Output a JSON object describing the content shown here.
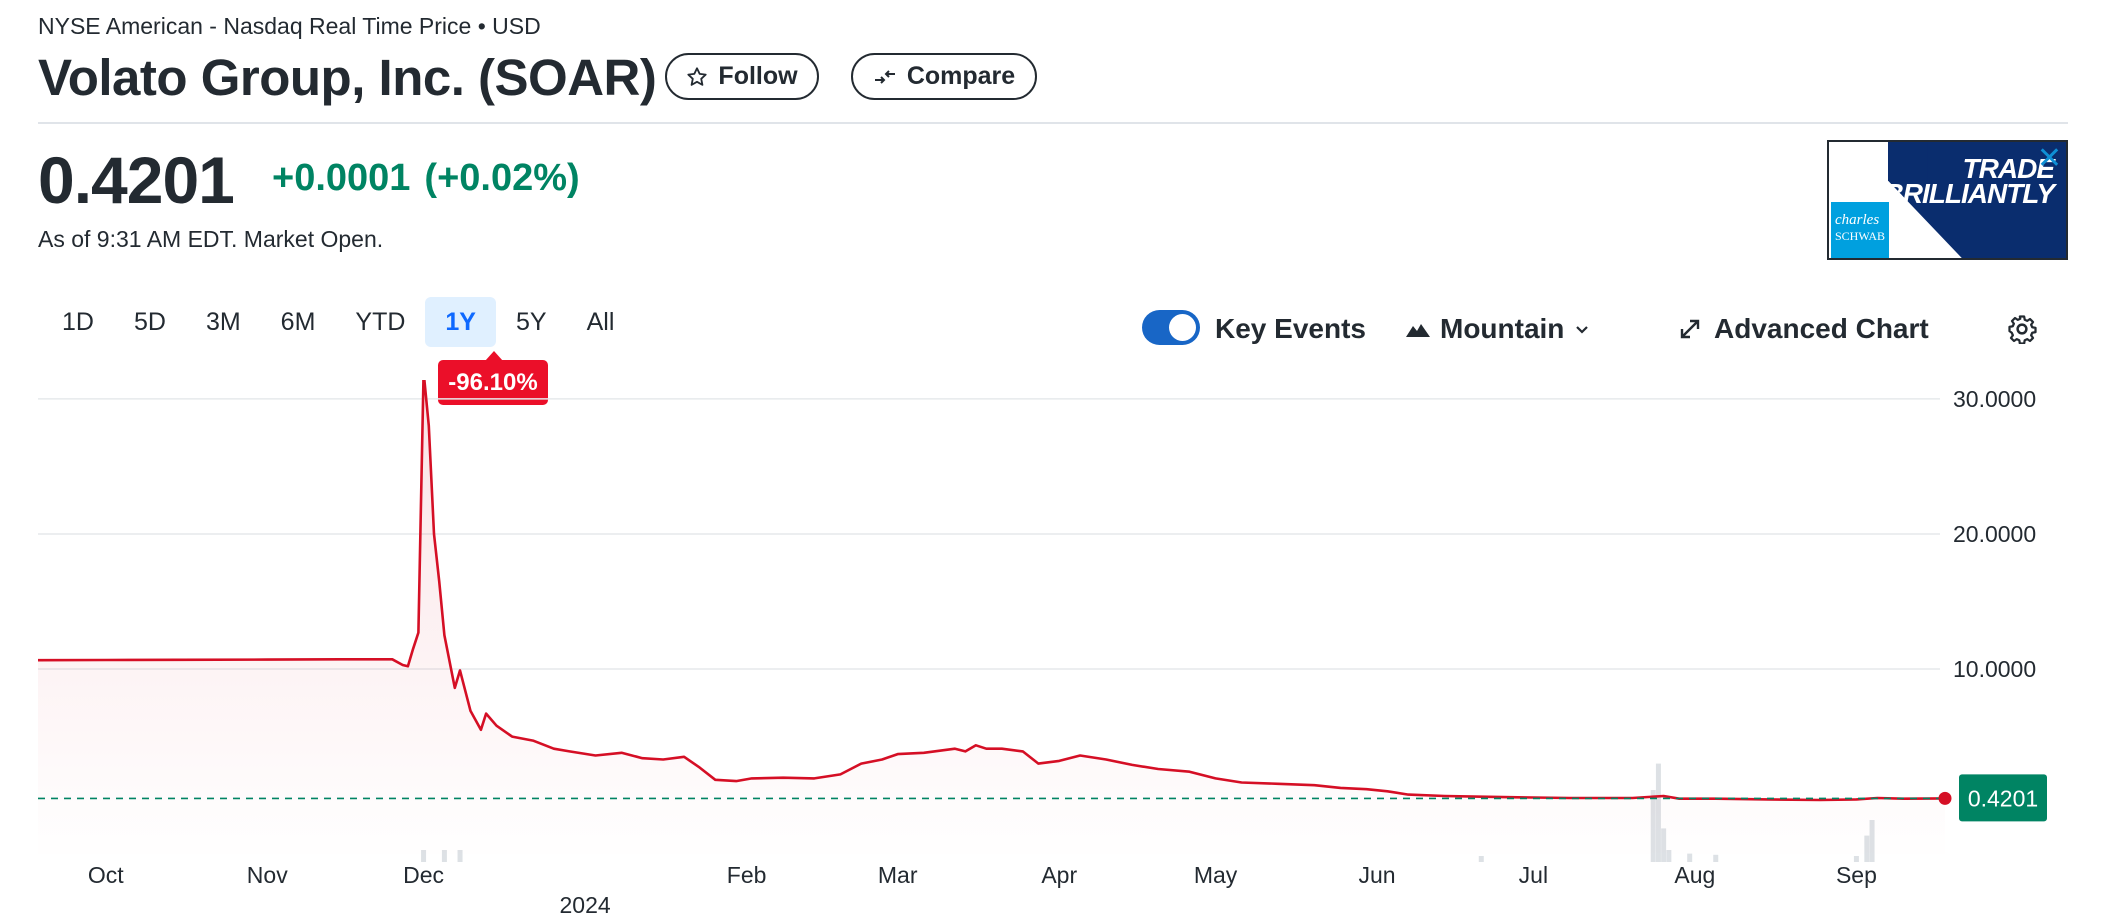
{
  "header": {
    "exchange": "NYSE American - Nasdaq Real Time Price • USD",
    "title": "Volato Group, Inc. (SOAR)",
    "follow_label": "Follow",
    "compare_label": "Compare"
  },
  "quote": {
    "price": "0.4201",
    "change": "+0.0001",
    "change_pct": "(+0.02%)",
    "as_of": "As of 9:31 AM EDT. Market Open."
  },
  "ad": {
    "line1": "TRADE",
    "line2": "BRILLIANTLY",
    "logo_line1": "charles",
    "logo_line2": "SCHWAB"
  },
  "ranges": [
    {
      "label": "1D",
      "active": false
    },
    {
      "label": "5D",
      "active": false
    },
    {
      "label": "3M",
      "active": false
    },
    {
      "label": "6M",
      "active": false
    },
    {
      "label": "YTD",
      "active": false
    },
    {
      "label": "1Y",
      "active": true
    },
    {
      "label": "5Y",
      "active": false
    },
    {
      "label": "All",
      "active": false
    }
  ],
  "performance_badge": "-96.10%",
  "controls": {
    "key_events_label": "Key Events",
    "key_events_on": true,
    "chart_type_label": "Mountain",
    "advanced_label": "Advanced Chart"
  },
  "colors": {
    "line": "#d50f25",
    "positive": "#008463",
    "badge": "#eb0f29",
    "active_range_bg": "#e0f0ff",
    "active_range_text": "#0f69ff"
  },
  "chart_data": {
    "type": "area",
    "ylim": [
      -3.4,
      31.4
    ],
    "yticks": [
      {
        "value": 30,
        "label": "30.0000"
      },
      {
        "value": 20,
        "label": "20.0000"
      },
      {
        "value": 10,
        "label": "10.0000"
      }
    ],
    "current_price": 0.4201,
    "current_label": "0.4201",
    "xlim": [
      "2023-09-18",
      "2024-09-18"
    ],
    "xticks": [
      {
        "date": "2023-10-01",
        "label": "Oct"
      },
      {
        "date": "2023-11-01",
        "label": "Nov"
      },
      {
        "date": "2023-12-01",
        "label": "Dec"
      },
      {
        "date": "2024-02-01",
        "label": "Feb"
      },
      {
        "date": "2024-03-01",
        "label": "Mar"
      },
      {
        "date": "2024-04-01",
        "label": "Apr"
      },
      {
        "date": "2024-05-01",
        "label": "May"
      },
      {
        "date": "2024-06-01",
        "label": "Jun"
      },
      {
        "date": "2024-07-01",
        "label": "Jul"
      },
      {
        "date": "2024-08-01",
        "label": "Aug"
      },
      {
        "date": "2024-09-01",
        "label": "Sep"
      }
    ],
    "year_label": {
      "date": "2024-01-01",
      "label": "2024"
    },
    "series": [
      {
        "points": [
          [
            "2023-09-18",
            10.65
          ],
          [
            "2023-10-01",
            10.67
          ],
          [
            "2023-10-15",
            10.68
          ],
          [
            "2023-11-01",
            10.7
          ],
          [
            "2023-11-15",
            10.72
          ],
          [
            "2023-11-25",
            10.72
          ],
          [
            "2023-11-27",
            10.3
          ],
          [
            "2023-11-28",
            10.2
          ],
          [
            "2023-11-29",
            11.5
          ],
          [
            "2023-11-30",
            12.7
          ],
          [
            "2023-12-01",
            32.0
          ],
          [
            "2023-12-02",
            28.0
          ],
          [
            "2023-12-03",
            20.0
          ],
          [
            "2023-12-04",
            16.5
          ],
          [
            "2023-12-05",
            12.5
          ],
          [
            "2023-12-07",
            8.6
          ],
          [
            "2023-12-08",
            9.9
          ],
          [
            "2023-12-10",
            6.9
          ],
          [
            "2023-12-12",
            5.5
          ],
          [
            "2023-12-13",
            6.7
          ],
          [
            "2023-12-15",
            5.8
          ],
          [
            "2023-12-18",
            5.0
          ],
          [
            "2023-12-22",
            4.7
          ],
          [
            "2023-12-26",
            4.1
          ],
          [
            "2023-12-29",
            3.9
          ],
          [
            "2024-01-03",
            3.6
          ],
          [
            "2024-01-08",
            3.8
          ],
          [
            "2024-01-12",
            3.4
          ],
          [
            "2024-01-16",
            3.3
          ],
          [
            "2024-01-20",
            3.5
          ],
          [
            "2024-01-23",
            2.7
          ],
          [
            "2024-01-26",
            1.8
          ],
          [
            "2024-01-30",
            1.7
          ],
          [
            "2024-02-02",
            1.9
          ],
          [
            "2024-02-08",
            1.95
          ],
          [
            "2024-02-14",
            1.9
          ],
          [
            "2024-02-19",
            2.2
          ],
          [
            "2024-02-23",
            3.0
          ],
          [
            "2024-02-27",
            3.3
          ],
          [
            "2024-03-01",
            3.7
          ],
          [
            "2024-03-06",
            3.8
          ],
          [
            "2024-03-12",
            4.1
          ],
          [
            "2024-03-14",
            3.9
          ],
          [
            "2024-03-16",
            4.35
          ],
          [
            "2024-03-18",
            4.1
          ],
          [
            "2024-03-21",
            4.1
          ],
          [
            "2024-03-25",
            3.9
          ],
          [
            "2024-03-28",
            3.0
          ],
          [
            "2024-04-01",
            3.2
          ],
          [
            "2024-04-05",
            3.6
          ],
          [
            "2024-04-10",
            3.3
          ],
          [
            "2024-04-15",
            2.9
          ],
          [
            "2024-04-20",
            2.6
          ],
          [
            "2024-04-26",
            2.4
          ],
          [
            "2024-05-01",
            1.9
          ],
          [
            "2024-05-06",
            1.6
          ],
          [
            "2024-05-13",
            1.5
          ],
          [
            "2024-05-20",
            1.4
          ],
          [
            "2024-05-25",
            1.2
          ],
          [
            "2024-05-30",
            1.1
          ],
          [
            "2024-06-03",
            0.95
          ],
          [
            "2024-06-07",
            0.7
          ],
          [
            "2024-06-14",
            0.6
          ],
          [
            "2024-06-21",
            0.55
          ],
          [
            "2024-06-28",
            0.5
          ],
          [
            "2024-07-08",
            0.45
          ],
          [
            "2024-07-20",
            0.45
          ],
          [
            "2024-07-26",
            0.6
          ],
          [
            "2024-07-29",
            0.4
          ],
          [
            "2024-08-05",
            0.4
          ],
          [
            "2024-08-15",
            0.35
          ],
          [
            "2024-08-25",
            0.3
          ],
          [
            "2024-09-01",
            0.35
          ],
          [
            "2024-09-05",
            0.45
          ],
          [
            "2024-09-10",
            0.4
          ],
          [
            "2024-09-18",
            0.4201
          ]
        ]
      }
    ],
    "volume": [
      [
        "2023-12-01",
        1.0
      ],
      [
        "2023-12-05",
        1.0
      ],
      [
        "2023-12-08",
        1.0
      ],
      [
        "2024-06-21",
        0.5
      ],
      [
        "2024-07-24",
        6.0
      ],
      [
        "2024-07-25",
        8.2
      ],
      [
        "2024-07-26",
        2.8
      ],
      [
        "2024-07-27",
        1.0
      ],
      [
        "2024-07-31",
        0.7
      ],
      [
        "2024-08-05",
        0.6
      ],
      [
        "2024-09-01",
        0.5
      ],
      [
        "2024-09-03",
        2.2
      ],
      [
        "2024-09-04",
        3.5
      ]
    ]
  }
}
